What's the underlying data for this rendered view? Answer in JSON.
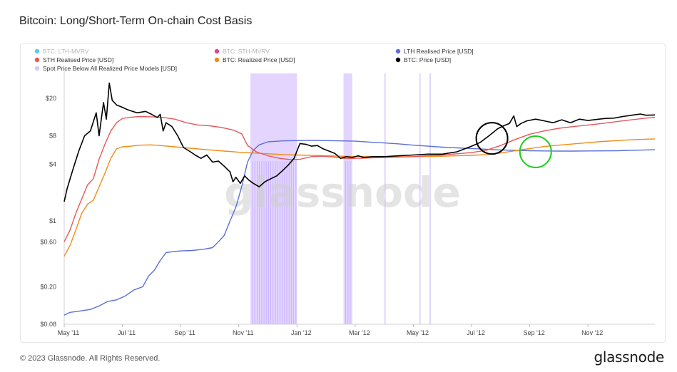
{
  "title": "Bitcoin: Long/Short-Term On-chain Cost Basis",
  "footer": "© 2023 Glassnode. All Rights Reserved.",
  "brand": "glassnode",
  "watermark": "glassnode",
  "colors": {
    "lth_mvrv": "#3fc1e8",
    "sth_mvrv": "#d6247c",
    "lth_realised": "#5b6fd6",
    "sth_realised": "#e8575a",
    "realized": "#f08c16",
    "price": "#000000",
    "spot_below": "#d9c7ff",
    "black_circle": "#000000",
    "green_circle": "#22cc22"
  },
  "chart_data": {
    "type": "line",
    "title": "Bitcoin: Long/Short-Term On-chain Cost Basis",
    "y_scale": "log",
    "ylim": [
      0.08,
      40
    ],
    "y_ticks": [
      {
        "value": 20,
        "label": "$20"
      },
      {
        "value": 8,
        "label": "$8"
      },
      {
        "value": 4,
        "label": "$4"
      },
      {
        "value": 1,
        "label": "$1"
      },
      {
        "value": 0.6,
        "label": "$0.60"
      },
      {
        "value": 0.2,
        "label": "$0.20"
      },
      {
        "value": 0.08,
        "label": "$0.08"
      }
    ],
    "x_ticks": [
      "May '11",
      "Jul '11",
      "Sep '11",
      "Nov '11",
      "Jan '12",
      "Mar '12",
      "May '12",
      "Jul '12",
      "Sep '12",
      "Nov '12"
    ],
    "x_tick_months": [
      0,
      2,
      4,
      6,
      8,
      10,
      12,
      14,
      16,
      18
    ],
    "x_range_months": [
      0,
      20.3
    ],
    "legend": [
      {
        "name": "BTC: LTH-MVRV",
        "color": "#3fc1e8",
        "faded": true
      },
      {
        "name": "BTC: STH-MVRV",
        "color": "#d6247c",
        "faded": true
      },
      {
        "name": "LTH Realised Price [USD]",
        "color": "#5b6fd6",
        "faded": false
      },
      {
        "name": "STH Realised Price [USD]",
        "color": "#e8575a",
        "faded": false
      },
      {
        "name": "BTC: Realized Price [USD]",
        "color": "#f08c16",
        "faded": false
      },
      {
        "name": "BTC: Price [USD]",
        "color": "#000000",
        "faded": false
      },
      {
        "name": "Spot Price Below All Realized Price Models [USD]",
        "color": "#d9c7ff",
        "faded": false
      }
    ],
    "series": [
      {
        "name": "BTC: Price [USD]",
        "key": "price",
        "points": [
          [
            0,
            1.6
          ],
          [
            0.1,
            2.2
          ],
          [
            0.3,
            3.5
          ],
          [
            0.5,
            5.5
          ],
          [
            0.7,
            8
          ],
          [
            0.9,
            9
          ],
          [
            1.1,
            14
          ],
          [
            1.2,
            8
          ],
          [
            1.35,
            18
          ],
          [
            1.45,
            12
          ],
          [
            1.55,
            29
          ],
          [
            1.65,
            19
          ],
          [
            1.8,
            17
          ],
          [
            2.0,
            16
          ],
          [
            2.2,
            15
          ],
          [
            2.5,
            14
          ],
          [
            2.8,
            14.5
          ],
          [
            3.0,
            13.5
          ],
          [
            3.2,
            12.5
          ],
          [
            3.3,
            13.5
          ],
          [
            3.4,
            9
          ],
          [
            3.5,
            11
          ],
          [
            3.7,
            10
          ],
          [
            3.9,
            8
          ],
          [
            4.1,
            6
          ],
          [
            4.3,
            5.5
          ],
          [
            4.5,
            5
          ],
          [
            4.7,
            4.6
          ],
          [
            4.9,
            5
          ],
          [
            5.1,
            4.2
          ],
          [
            5.3,
            4.3
          ],
          [
            5.5,
            3.8
          ],
          [
            5.7,
            3.3
          ],
          [
            5.8,
            2.6
          ],
          [
            5.9,
            2.9
          ],
          [
            6.05,
            2.5
          ],
          [
            6.2,
            3.0
          ],
          [
            6.35,
            2.7
          ],
          [
            6.5,
            2.5
          ],
          [
            6.7,
            2.3
          ],
          [
            6.9,
            2.6
          ],
          [
            7.1,
            2.8
          ],
          [
            7.3,
            3.0
          ],
          [
            7.5,
            3.4
          ],
          [
            7.7,
            3.9
          ],
          [
            7.9,
            4.6
          ],
          [
            8.1,
            6.6
          ],
          [
            8.3,
            6.5
          ],
          [
            8.5,
            6.2
          ],
          [
            8.7,
            6.3
          ],
          [
            8.9,
            5.8
          ],
          [
            9.1,
            5.5
          ],
          [
            9.3,
            5.2
          ],
          [
            9.5,
            4.6
          ],
          [
            9.7,
            4.8
          ],
          [
            9.9,
            4.7
          ],
          [
            10.1,
            4.9
          ],
          [
            10.3,
            4.7
          ],
          [
            10.6,
            4.8
          ],
          [
            11.0,
            4.8
          ],
          [
            11.5,
            4.9
          ],
          [
            12.0,
            5.0
          ],
          [
            12.5,
            5.1
          ],
          [
            13.0,
            5.1
          ],
          [
            13.5,
            5.4
          ],
          [
            14.0,
            6.2
          ],
          [
            14.3,
            6.8
          ],
          [
            14.6,
            8.0
          ],
          [
            14.9,
            9.5
          ],
          [
            15.1,
            10.2
          ],
          [
            15.3,
            10.8
          ],
          [
            15.45,
            13.0
          ],
          [
            15.55,
            10.0
          ],
          [
            15.7,
            10.8
          ],
          [
            15.9,
            11.5
          ],
          [
            16.2,
            12.0
          ],
          [
            16.5,
            11.5
          ],
          [
            16.8,
            11.0
          ],
          [
            17.1,
            11.8
          ],
          [
            17.4,
            11.0
          ],
          [
            17.7,
            12.0
          ],
          [
            18.0,
            11.6
          ],
          [
            18.3,
            11.9
          ],
          [
            18.6,
            12.2
          ],
          [
            18.9,
            12.3
          ],
          [
            19.2,
            12.8
          ],
          [
            19.5,
            13.2
          ],
          [
            19.8,
            13.6
          ],
          [
            20.0,
            13.2
          ],
          [
            20.3,
            13.3
          ]
        ]
      },
      {
        "name": "STH Realised Price [USD]",
        "key": "sth_realised",
        "points": [
          [
            0,
            0.6
          ],
          [
            0.2,
            0.8
          ],
          [
            0.4,
            1.2
          ],
          [
            0.6,
            1.7
          ],
          [
            0.8,
            2.4
          ],
          [
            1.0,
            2.8
          ],
          [
            1.2,
            4.5
          ],
          [
            1.4,
            6.5
          ],
          [
            1.6,
            9.0
          ],
          [
            1.8,
            11.0
          ],
          [
            2.0,
            12.2
          ],
          [
            2.3,
            12.6
          ],
          [
            2.6,
            12.8
          ],
          [
            3.0,
            12.7
          ],
          [
            3.4,
            12.5
          ],
          [
            3.8,
            12.0
          ],
          [
            4.2,
            11.0
          ],
          [
            4.6,
            10.4
          ],
          [
            5.0,
            10.2
          ],
          [
            5.4,
            9.8
          ],
          [
            5.8,
            9.2
          ],
          [
            6.1,
            8.4
          ],
          [
            6.3,
            6.3
          ],
          [
            6.6,
            5.4
          ],
          [
            7.0,
            4.9
          ],
          [
            7.4,
            4.6
          ],
          [
            7.8,
            4.45
          ],
          [
            8.1,
            4.5
          ],
          [
            8.5,
            4.8
          ],
          [
            8.9,
            4.85
          ],
          [
            9.3,
            4.75
          ],
          [
            9.6,
            4.6
          ],
          [
            10.0,
            4.6
          ],
          [
            10.5,
            4.65
          ],
          [
            11.0,
            4.7
          ],
          [
            11.5,
            4.75
          ],
          [
            12.0,
            4.8
          ],
          [
            12.5,
            4.9
          ],
          [
            13.0,
            5.0
          ],
          [
            13.5,
            5.15
          ],
          [
            14.0,
            5.3
          ],
          [
            14.5,
            5.6
          ],
          [
            15.0,
            6.3
          ],
          [
            15.5,
            7.3
          ],
          [
            16.0,
            8.3
          ],
          [
            16.5,
            9.0
          ],
          [
            17.0,
            9.6
          ],
          [
            17.5,
            10.0
          ],
          [
            18.0,
            10.4
          ],
          [
            18.5,
            10.8
          ],
          [
            19.0,
            11.3
          ],
          [
            19.5,
            11.8
          ],
          [
            20.0,
            12.3
          ],
          [
            20.3,
            12.5
          ]
        ]
      },
      {
        "name": "BTC: Realized Price [USD]",
        "key": "realized",
        "points": [
          [
            0,
            0.42
          ],
          [
            0.2,
            0.55
          ],
          [
            0.4,
            0.8
          ],
          [
            0.6,
            1.2
          ],
          [
            0.8,
            1.5
          ],
          [
            1.0,
            1.65
          ],
          [
            1.2,
            2.3
          ],
          [
            1.4,
            3.2
          ],
          [
            1.6,
            4.6
          ],
          [
            1.8,
            5.8
          ],
          [
            2.0,
            6.1
          ],
          [
            2.3,
            6.2
          ],
          [
            2.6,
            6.35
          ],
          [
            3.0,
            6.4
          ],
          [
            3.4,
            6.25
          ],
          [
            3.8,
            6.1
          ],
          [
            4.2,
            5.95
          ],
          [
            4.6,
            5.8
          ],
          [
            5.0,
            5.65
          ],
          [
            5.5,
            5.5
          ],
          [
            6.0,
            5.35
          ],
          [
            6.5,
            5.25
          ],
          [
            7.0,
            5.15
          ],
          [
            7.5,
            5.05
          ],
          [
            8.0,
            5.0
          ],
          [
            8.5,
            4.95
          ],
          [
            9.0,
            4.9
          ],
          [
            9.5,
            4.85
          ],
          [
            10.0,
            4.82
          ],
          [
            10.5,
            4.8
          ],
          [
            11.0,
            4.78
          ],
          [
            11.5,
            4.78
          ],
          [
            12.0,
            4.8
          ],
          [
            12.5,
            4.82
          ],
          [
            13.0,
            4.85
          ],
          [
            13.5,
            4.9
          ],
          [
            14.0,
            4.95
          ],
          [
            14.5,
            5.05
          ],
          [
            15.0,
            5.25
          ],
          [
            15.5,
            5.55
          ],
          [
            16.0,
            5.85
          ],
          [
            16.5,
            6.15
          ],
          [
            17.0,
            6.35
          ],
          [
            17.5,
            6.55
          ],
          [
            18.0,
            6.75
          ],
          [
            18.5,
            6.95
          ],
          [
            19.0,
            7.1
          ],
          [
            19.5,
            7.25
          ],
          [
            20.0,
            7.35
          ],
          [
            20.3,
            7.4
          ]
        ]
      },
      {
        "name": "LTH Realised Price [USD]",
        "key": "lth_realised",
        "points": [
          [
            0,
            0.1
          ],
          [
            0.2,
            0.107
          ],
          [
            0.5,
            0.11
          ],
          [
            0.9,
            0.115
          ],
          [
            1.2,
            0.125
          ],
          [
            1.5,
            0.14
          ],
          [
            1.8,
            0.145
          ],
          [
            2.1,
            0.16
          ],
          [
            2.4,
            0.185
          ],
          [
            2.7,
            0.2
          ],
          [
            2.9,
            0.26
          ],
          [
            3.1,
            0.3
          ],
          [
            3.3,
            0.38
          ],
          [
            3.5,
            0.46
          ],
          [
            3.7,
            0.47
          ],
          [
            4.0,
            0.48
          ],
          [
            4.4,
            0.485
          ],
          [
            4.8,
            0.5
          ],
          [
            5.1,
            0.52
          ],
          [
            5.3,
            0.6
          ],
          [
            5.5,
            0.7
          ],
          [
            5.7,
            1.0
          ],
          [
            5.9,
            1.4
          ],
          [
            6.1,
            2.3
          ],
          [
            6.3,
            4.2
          ],
          [
            6.5,
            5.6
          ],
          [
            6.7,
            6.4
          ],
          [
            7.0,
            6.9
          ],
          [
            7.5,
            7.05
          ],
          [
            8.0,
            7.1
          ],
          [
            8.5,
            7.15
          ],
          [
            9.0,
            7.1
          ],
          [
            9.5,
            7.05
          ],
          [
            10.0,
            7.0
          ],
          [
            10.5,
            6.85
          ],
          [
            11.0,
            6.7
          ],
          [
            11.5,
            6.55
          ],
          [
            12.0,
            6.35
          ],
          [
            12.5,
            6.2
          ],
          [
            13.0,
            6.05
          ],
          [
            13.5,
            5.95
          ],
          [
            14.0,
            5.85
          ],
          [
            14.5,
            5.75
          ],
          [
            15.0,
            5.65
          ],
          [
            15.5,
            5.6
          ],
          [
            16.0,
            5.55
          ],
          [
            16.5,
            5.52
          ],
          [
            17.0,
            5.5
          ],
          [
            17.5,
            5.5
          ],
          [
            18.0,
            5.52
          ],
          [
            18.5,
            5.53
          ],
          [
            19.0,
            5.55
          ],
          [
            19.5,
            5.6
          ],
          [
            20.0,
            5.65
          ],
          [
            20.3,
            5.68
          ]
        ]
      }
    ],
    "spot_below_bands": [
      [
        6.4,
        8.0
      ],
      [
        9.6,
        9.9
      ],
      [
        11.0,
        11.05
      ],
      [
        12.2,
        12.25
      ],
      [
        12.55,
        12.6
      ]
    ],
    "annotations": [
      {
        "shape": "circle",
        "color": "#000000",
        "x": 14.7,
        "y": 7.5
      },
      {
        "shape": "circle",
        "color": "#22cc22",
        "x": 16.2,
        "y": 5.4
      }
    ]
  }
}
